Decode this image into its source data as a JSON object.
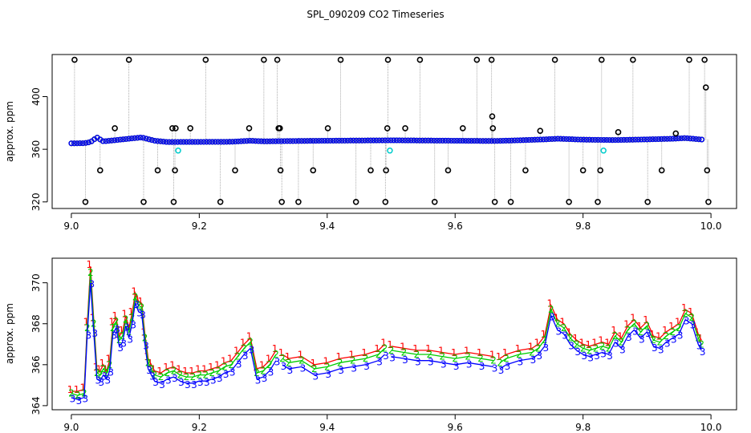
{
  "title": "SPL_090209  CO2 Timeseries",
  "colors": {
    "outlier": "#000000",
    "flagged": "#00cccc",
    "series1": "#ff0000",
    "series2": "#00cc00",
    "series3": "#0000ff",
    "drop_line": "#999999"
  },
  "chart_data": [
    {
      "type": "scatter",
      "name": "top-panel",
      "title": "SPL_090209  CO2 Timeseries",
      "xlabel": "",
      "ylabel": "approx. ppm",
      "xlim": [
        8.97,
        10.04
      ],
      "ylim": [
        315,
        432
      ],
      "xticks": [
        "9.0",
        "9.2",
        "9.4",
        "9.6",
        "9.8",
        "10.0"
      ],
      "yticks": [
        "320",
        "360",
        "400"
      ],
      "xtick_values": [
        9.0,
        9.2,
        9.4,
        9.6,
        9.8,
        10.0
      ],
      "ytick_values": [
        320,
        360,
        400
      ],
      "baseline": {
        "x": [
          9.0,
          9.02,
          9.03,
          9.04,
          9.05,
          9.07,
          9.09,
          9.11,
          9.13,
          9.15,
          9.2,
          9.25,
          9.28,
          9.3,
          9.33,
          9.4,
          9.5,
          9.6,
          9.66,
          9.7,
          9.74,
          9.76,
          9.8,
          9.85,
          9.9,
          9.94,
          9.96,
          9.99
        ],
        "y": [
          364.5,
          364.6,
          365.5,
          369,
          366,
          367,
          368,
          369,
          366.5,
          365.5,
          365.6,
          365.7,
          366.5,
          366,
          366.2,
          366.5,
          366.8,
          366.5,
          366.3,
          366.8,
          367.5,
          368,
          367.3,
          367,
          367.5,
          368,
          368.5,
          367.2
        ]
      },
      "outliers": {
        "x": [
          9.005,
          9.022,
          9.045,
          9.068,
          9.09,
          9.113,
          9.135,
          9.158,
          9.16,
          9.162,
          9.163,
          9.186,
          9.21,
          9.233,
          9.256,
          9.278,
          9.301,
          9.322,
          9.324,
          9.326,
          9.327,
          9.329,
          9.355,
          9.378,
          9.401,
          9.421,
          9.445,
          9.468,
          9.491,
          9.492,
          9.494,
          9.495,
          9.522,
          9.545,
          9.568,
          9.589,
          9.612,
          9.634,
          9.657,
          9.658,
          9.659,
          9.662,
          9.687,
          9.71,
          9.733,
          9.756,
          9.778,
          9.8,
          9.823,
          9.827,
          9.829,
          9.855,
          9.878,
          9.901,
          9.923,
          9.945,
          9.966,
          9.99,
          9.992,
          9.994,
          9.996
        ],
        "y": [
          428,
          320,
          344,
          376,
          428,
          320,
          344,
          376,
          320,
          344,
          376,
          376,
          428,
          320,
          344,
          376,
          428,
          428,
          376,
          376,
          344,
          320,
          320,
          344,
          376,
          428,
          320,
          344,
          320,
          344,
          376,
          428,
          376,
          428,
          320,
          344,
          376,
          428,
          428,
          385,
          376,
          320,
          320,
          344,
          374,
          428,
          320,
          344,
          320,
          344,
          428,
          373,
          428,
          320,
          344,
          372,
          428,
          428,
          407,
          344,
          320
        ]
      },
      "flagged": {
        "x": [
          9.167,
          9.498,
          9.832
        ],
        "y": [
          359,
          359,
          359
        ]
      }
    },
    {
      "type": "line",
      "name": "bottom-panel",
      "title": "",
      "xlabel": "",
      "ylabel": "approx. ppm",
      "xlim": [
        8.97,
        10.04
      ],
      "ylim": [
        363.8,
        371.2
      ],
      "xticks": [
        "9.0",
        "9.2",
        "9.4",
        "9.6",
        "9.8",
        "10.0"
      ],
      "yticks": [
        "364",
        "366",
        "368",
        "370"
      ],
      "xtick_values": [
        9.0,
        9.2,
        9.4,
        9.6,
        9.8,
        10.0
      ],
      "ytick_values": [
        364,
        366,
        368,
        370
      ],
      "x": [
        9.0,
        9.01,
        9.02,
        9.025,
        9.03,
        9.035,
        9.04,
        9.045,
        9.05,
        9.055,
        9.06,
        9.065,
        9.07,
        9.075,
        9.08,
        9.085,
        9.09,
        9.095,
        9.1,
        9.105,
        9.11,
        9.115,
        9.12,
        9.125,
        9.13,
        9.14,
        9.15,
        9.16,
        9.17,
        9.18,
        9.19,
        9.2,
        9.21,
        9.22,
        9.23,
        9.24,
        9.25,
        9.26,
        9.27,
        9.28,
        9.29,
        9.3,
        9.31,
        9.32,
        9.33,
        9.34,
        9.36,
        9.38,
        9.4,
        9.42,
        9.44,
        9.46,
        9.48,
        9.49,
        9.5,
        9.52,
        9.54,
        9.56,
        9.58,
        9.6,
        9.62,
        9.64,
        9.66,
        9.67,
        9.68,
        9.7,
        9.72,
        9.73,
        9.74,
        9.75,
        9.76,
        9.77,
        9.78,
        9.79,
        9.8,
        9.81,
        9.82,
        9.83,
        9.84,
        9.85,
        9.86,
        9.87,
        9.88,
        9.89,
        9.9,
        9.91,
        9.92,
        9.93,
        9.94,
        9.95,
        9.96,
        9.97,
        9.98,
        9.985
      ],
      "series": [
        {
          "name": "1",
          "values": [
            364.7,
            364.7,
            364.8,
            368.0,
            370.8,
            368.2,
            365.8,
            365.7,
            366.0,
            365.7,
            366.2,
            368.0,
            368.3,
            367.4,
            367.6,
            368.4,
            367.8,
            368.5,
            369.5,
            369.1,
            369.0,
            367.5,
            366.3,
            366.0,
            365.7,
            365.6,
            365.8,
            365.9,
            365.7,
            365.6,
            365.6,
            365.7,
            365.7,
            365.8,
            365.9,
            366.1,
            366.2,
            366.6,
            367.0,
            367.3,
            365.8,
            365.9,
            366.2,
            366.7,
            366.5,
            366.3,
            366.4,
            366.0,
            366.1,
            366.3,
            366.4,
            366.5,
            366.7,
            367.0,
            366.9,
            366.8,
            366.7,
            366.7,
            366.6,
            366.5,
            366.6,
            366.5,
            366.4,
            366.3,
            366.5,
            366.7,
            366.8,
            367.0,
            367.4,
            368.9,
            368.2,
            368.0,
            367.5,
            367.2,
            367.0,
            366.9,
            367.0,
            367.1,
            367.0,
            367.6,
            367.3,
            367.9,
            368.2,
            367.8,
            368.1,
            367.4,
            367.3,
            367.6,
            367.8,
            368.0,
            368.7,
            368.5,
            367.5,
            367.2
          ]
        },
        {
          "name": "2",
          "values": [
            364.6,
            364.5,
            364.6,
            367.8,
            370.5,
            368.0,
            365.6,
            365.5,
            365.8,
            365.6,
            366.0,
            367.8,
            368.1,
            367.2,
            367.4,
            368.2,
            367.6,
            368.3,
            369.3,
            368.9,
            368.8,
            367.3,
            366.1,
            365.8,
            365.5,
            365.4,
            365.6,
            365.7,
            365.5,
            365.4,
            365.4,
            365.5,
            365.5,
            365.6,
            365.7,
            365.9,
            366.0,
            366.4,
            366.8,
            367.1,
            365.6,
            365.7,
            366.0,
            366.5,
            366.3,
            366.1,
            366.2,
            365.8,
            365.9,
            366.1,
            366.2,
            366.3,
            366.5,
            366.8,
            366.7,
            366.6,
            366.5,
            366.5,
            366.4,
            366.3,
            366.4,
            366.3,
            366.2,
            366.1,
            366.3,
            366.5,
            366.6,
            366.8,
            367.2,
            368.7,
            368.0,
            367.8,
            367.3,
            367.0,
            366.8,
            366.7,
            366.8,
            366.9,
            366.8,
            367.4,
            367.1,
            367.7,
            368.0,
            367.6,
            367.9,
            367.2,
            367.1,
            367.4,
            367.6,
            367.8,
            368.5,
            368.3,
            367.3,
            367.0
          ]
        },
        {
          "name": "3",
          "values": [
            364.4,
            364.3,
            364.4,
            367.5,
            370.0,
            367.6,
            365.3,
            365.2,
            365.5,
            365.3,
            365.7,
            367.5,
            367.8,
            366.9,
            367.1,
            367.9,
            367.3,
            368.0,
            369.0,
            368.6,
            368.5,
            367.0,
            365.8,
            365.5,
            365.2,
            365.1,
            365.3,
            365.4,
            365.2,
            365.1,
            365.1,
            365.2,
            365.2,
            365.3,
            365.4,
            365.6,
            365.7,
            366.1,
            366.5,
            366.8,
            365.3,
            365.4,
            365.7,
            366.2,
            366.0,
            365.8,
            365.9,
            365.5,
            365.6,
            365.8,
            365.9,
            366.0,
            366.2,
            366.5,
            366.4,
            366.3,
            366.2,
            366.2,
            366.1,
            366.0,
            366.1,
            366.0,
            365.9,
            365.8,
            366.0,
            366.2,
            366.3,
            366.5,
            366.9,
            368.4,
            367.7,
            367.5,
            367.0,
            366.7,
            366.5,
            366.4,
            366.5,
            366.6,
            366.5,
            367.1,
            366.8,
            367.4,
            367.7,
            367.3,
            367.6,
            366.9,
            366.8,
            367.1,
            367.3,
            367.5,
            368.2,
            368.0,
            367.0,
            366.7
          ]
        }
      ]
    }
  ]
}
